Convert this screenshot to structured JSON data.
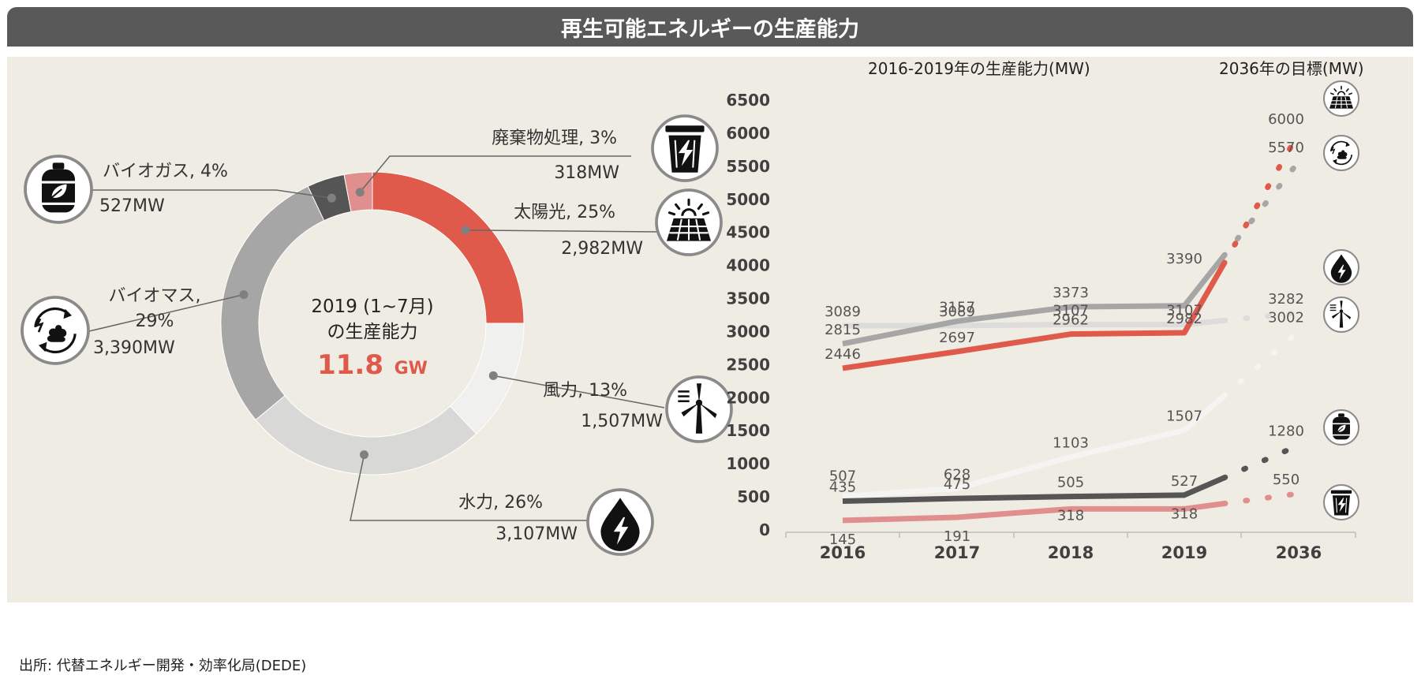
{
  "title": "再生可能エネルギーの生産能力",
  "source": "出所: 代替エネルギー開発・効率化局(DEDE)",
  "colors": {
    "solar": "#e05a4b",
    "wind": "#f0f0ef",
    "hydro": "#d8d8d6",
    "biomass": "#a6a6a6",
    "biogas": "#555555",
    "waste": "#e08e8e",
    "center_value": "#e05a4b",
    "panel_bg": "#efece3",
    "title_bg": "#595959"
  },
  "donut": {
    "center_line1": "2019 (1~7月)",
    "center_line2": "の生産能力",
    "center_value": "11.8",
    "center_unit": "GW",
    "slices": [
      {
        "key": "solar",
        "label": "太陽光, 25%",
        "pct": 25,
        "value": "2,982MW",
        "icon": "solar-panel-icon"
      },
      {
        "key": "wind",
        "label": "風力, 13%",
        "pct": 13,
        "value": "1,507MW",
        "icon": "wind-turbine-icon"
      },
      {
        "key": "hydro",
        "label": "水力, 26%",
        "pct": 26,
        "value": "3,107MW",
        "icon": "water-drop-icon"
      },
      {
        "key": "biomass",
        "label_line1": "バイオマス,",
        "label_line2": "29%",
        "pct": 29,
        "value": "3,390MW",
        "icon": "biomass-recycle-icon"
      },
      {
        "key": "biogas",
        "label": "バイオガス, 4%",
        "pct": 4,
        "value": "527MW",
        "icon": "gas-cylinder-icon"
      },
      {
        "key": "waste",
        "label": "廃棄物処理, 3%",
        "pct": 3,
        "value": "318MW",
        "icon": "waste-bin-icon"
      }
    ]
  },
  "chart_data": {
    "type": "line",
    "title_left": "2016-2019年の生産能力(MW)",
    "title_right": "2036年の目標(MW)",
    "categories": [
      "2016",
      "2017",
      "2018",
      "2019",
      "2036"
    ],
    "ylim": [
      0,
      6500
    ],
    "yticks": [
      0,
      500,
      1000,
      1500,
      2000,
      2500,
      3000,
      3500,
      4000,
      4500,
      5000,
      5500,
      6000,
      6500
    ],
    "series": [
      {
        "key": "solar",
        "values": [
          2446,
          2697,
          2962,
          2982,
          6000
        ],
        "labels": [
          "2446",
          "2697",
          "2962",
          "2982",
          "6000"
        ],
        "icon": "solar-panel-icon"
      },
      {
        "key": "biomass",
        "values": [
          2815,
          3157,
          3373,
          3390,
          5570
        ],
        "labels": [
          "2815",
          "3157",
          "3373",
          "3390",
          "5570"
        ],
        "icon": "biomass-recycle-icon"
      },
      {
        "key": "hydro",
        "values": [
          3089,
          3089,
          3107,
          3107,
          3282
        ],
        "labels": [
          "3089",
          "3089",
          "3107",
          "3107",
          "3282"
        ],
        "icon": "water-drop-icon"
      },
      {
        "key": "wind",
        "values": [
          507,
          628,
          1103,
          1507,
          3002
        ],
        "labels": [
          "507",
          "628",
          "1103",
          "1507",
          "3002"
        ],
        "icon": "wind-turbine-icon"
      },
      {
        "key": "biogas",
        "values": [
          435,
          475,
          505,
          527,
          1280
        ],
        "labels": [
          "435",
          "475",
          "505",
          "527",
          "1280"
        ],
        "icon": "gas-cylinder-icon"
      },
      {
        "key": "waste",
        "values": [
          145,
          191,
          318,
          318,
          550
        ],
        "labels": [
          "145",
          "191",
          "318",
          "318",
          "550"
        ],
        "icon": "waste-bin-icon"
      }
    ]
  }
}
